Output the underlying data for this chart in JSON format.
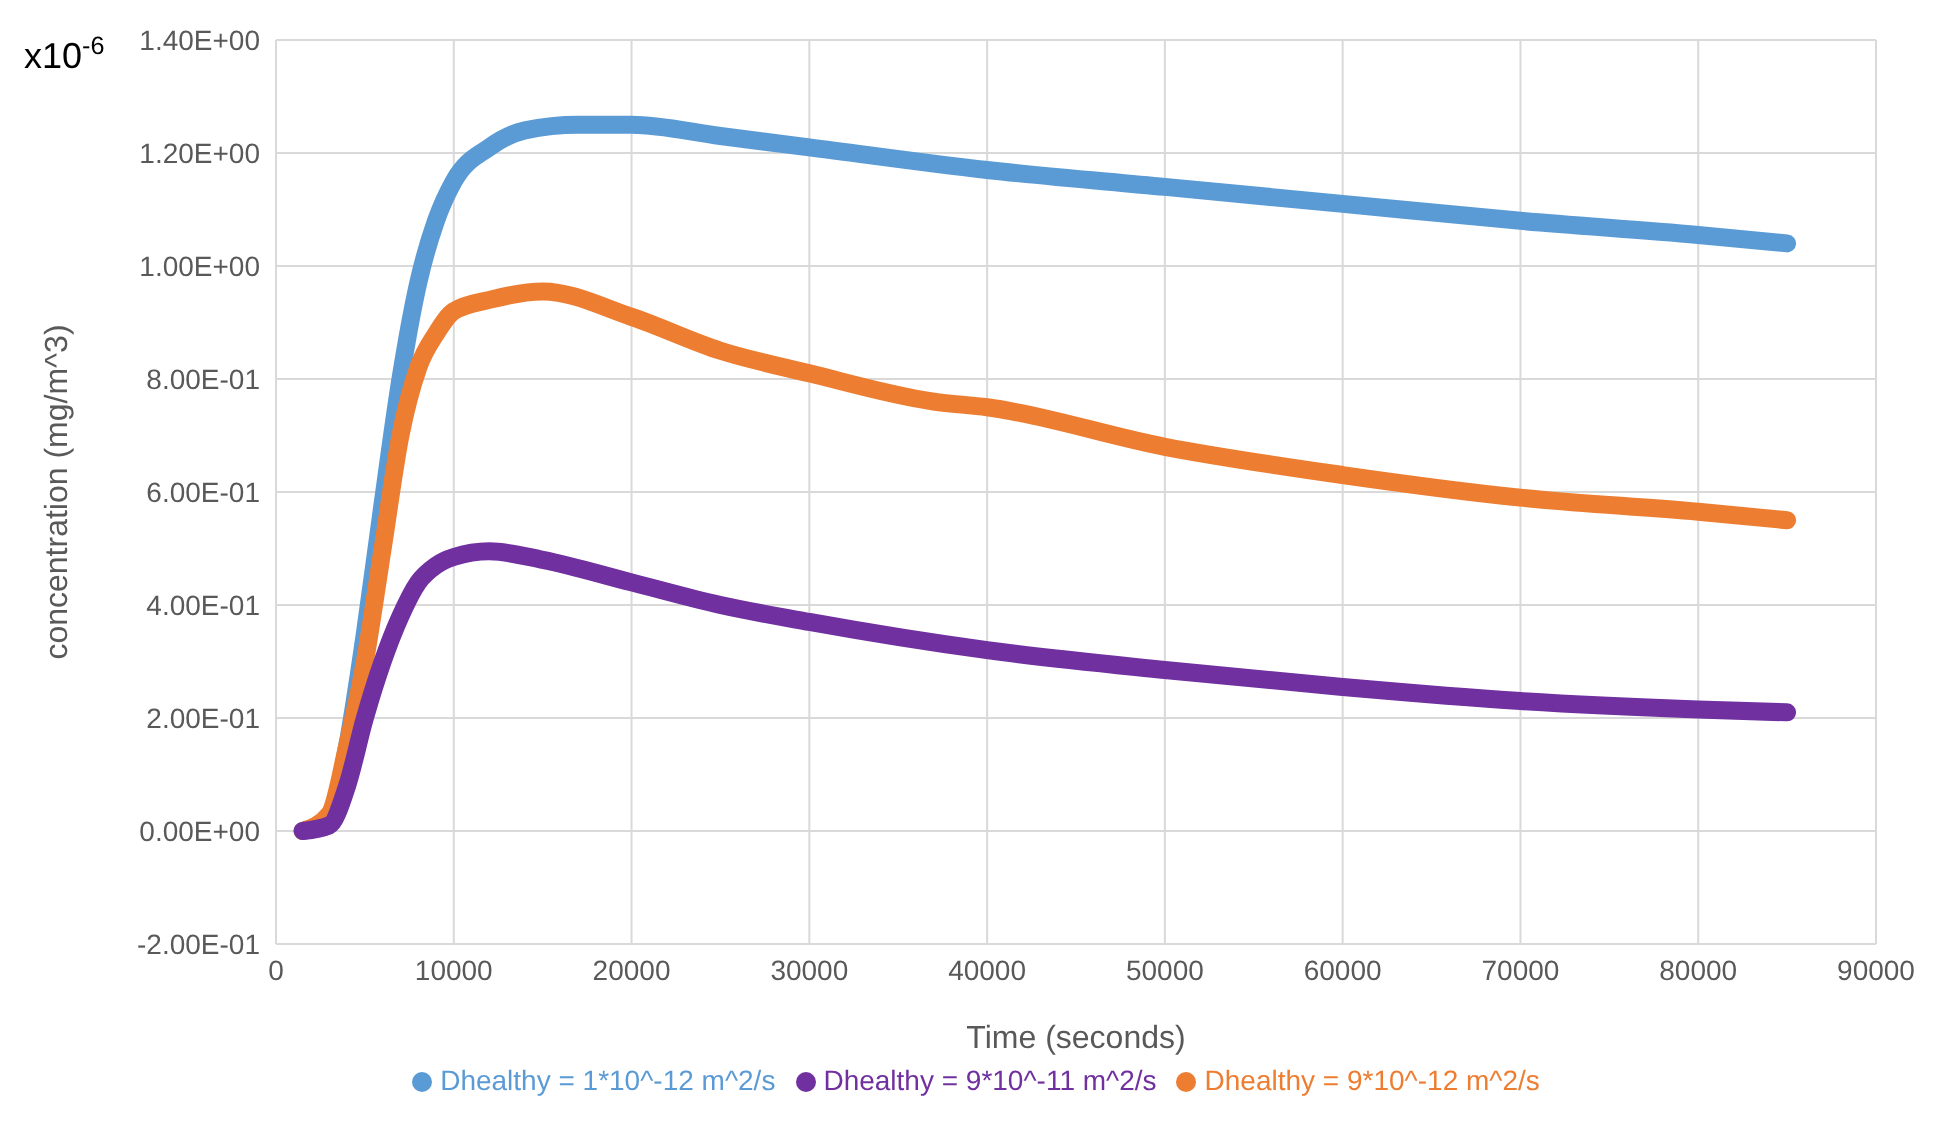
{
  "chart_data": {
    "type": "line",
    "xlabel": "Time (seconds)",
    "ylabel": "concentration (mg/m^3)",
    "annotations": [
      "x10$^{-6}$"
    ],
    "xlim": [
      0,
      90000
    ],
    "xticks": [
      0,
      10000,
      20000,
      30000,
      40000,
      50000,
      60000,
      70000,
      80000,
      90000
    ],
    "ylim": [
      -0.2,
      1.4
    ],
    "yticks": [
      {
        "value": -0.2,
        "label": "-2.00E-01"
      },
      {
        "value": 0,
        "label": "0.00E+00"
      },
      {
        "value": 0.2,
        "label": "2.00E-01"
      },
      {
        "value": 0.4,
        "label": "4.00E-01"
      },
      {
        "value": 0.6,
        "label": "6.00E-01"
      },
      {
        "value": 0.8,
        "label": "8.00E-01"
      },
      {
        "value": 1,
        "label": "1.00E+00"
      },
      {
        "value": 1.2,
        "label": "1.20E+00"
      },
      {
        "value": 1.4,
        "label": "1.40E+00"
      }
    ],
    "grid": true,
    "legend": "bottom",
    "marker": "none",
    "line_style": "solid",
    "series": [
      {
        "name": "Dhealthy = 1*10^-12 m^2/s",
        "color": "#5b9bd5",
        "x": [
          1500,
          3000,
          4000,
          5000,
          6000,
          7000,
          8000,
          9000,
          10000,
          12000,
          14000,
          17000,
          20000,
          25000,
          30000,
          40000,
          50000,
          60000,
          70000,
          80000,
          85000
        ],
        "values": [
          0,
          0.02,
          0.15,
          0.35,
          0.58,
          0.8,
          0.97,
          1.08,
          1.15,
          1.21,
          1.24,
          1.25,
          1.25,
          1.23,
          1.21,
          1.17,
          1.14,
          1.11,
          1.08,
          1.055,
          1.04
        ]
      },
      {
        "name": "Dhealthy = 9*10^-12 m^2/s",
        "color": "#ed7d31",
        "x": [
          1500,
          3000,
          4000,
          5000,
          6000,
          7000,
          8000,
          9000,
          10000,
          12000,
          15000,
          20000,
          25000,
          30000,
          37000,
          40000,
          50000,
          60000,
          70000,
          80000,
          85000
        ],
        "values": [
          0,
          0.03,
          0.15,
          0.3,
          0.5,
          0.7,
          0.82,
          0.88,
          0.92,
          0.94,
          0.955,
          0.91,
          0.85,
          0.81,
          0.76,
          0.75,
          0.68,
          0.63,
          0.59,
          0.565,
          0.55
        ]
      },
      {
        "name": "Dhealthy = 9*10^-11 m^2/s",
        "color": "#7030a0",
        "x": [
          1500,
          3000,
          4000,
          5000,
          6000,
          7000,
          8000,
          9000,
          10000,
          12000,
          15000,
          20000,
          25000,
          30000,
          40000,
          50000,
          60000,
          70000,
          80000,
          85000
        ],
        "values": [
          0,
          0.01,
          0.08,
          0.2,
          0.3,
          0.38,
          0.44,
          0.47,
          0.485,
          0.495,
          0.48,
          0.44,
          0.4,
          0.37,
          0.32,
          0.285,
          0.255,
          0.23,
          0.215,
          0.21
        ]
      }
    ]
  }
}
